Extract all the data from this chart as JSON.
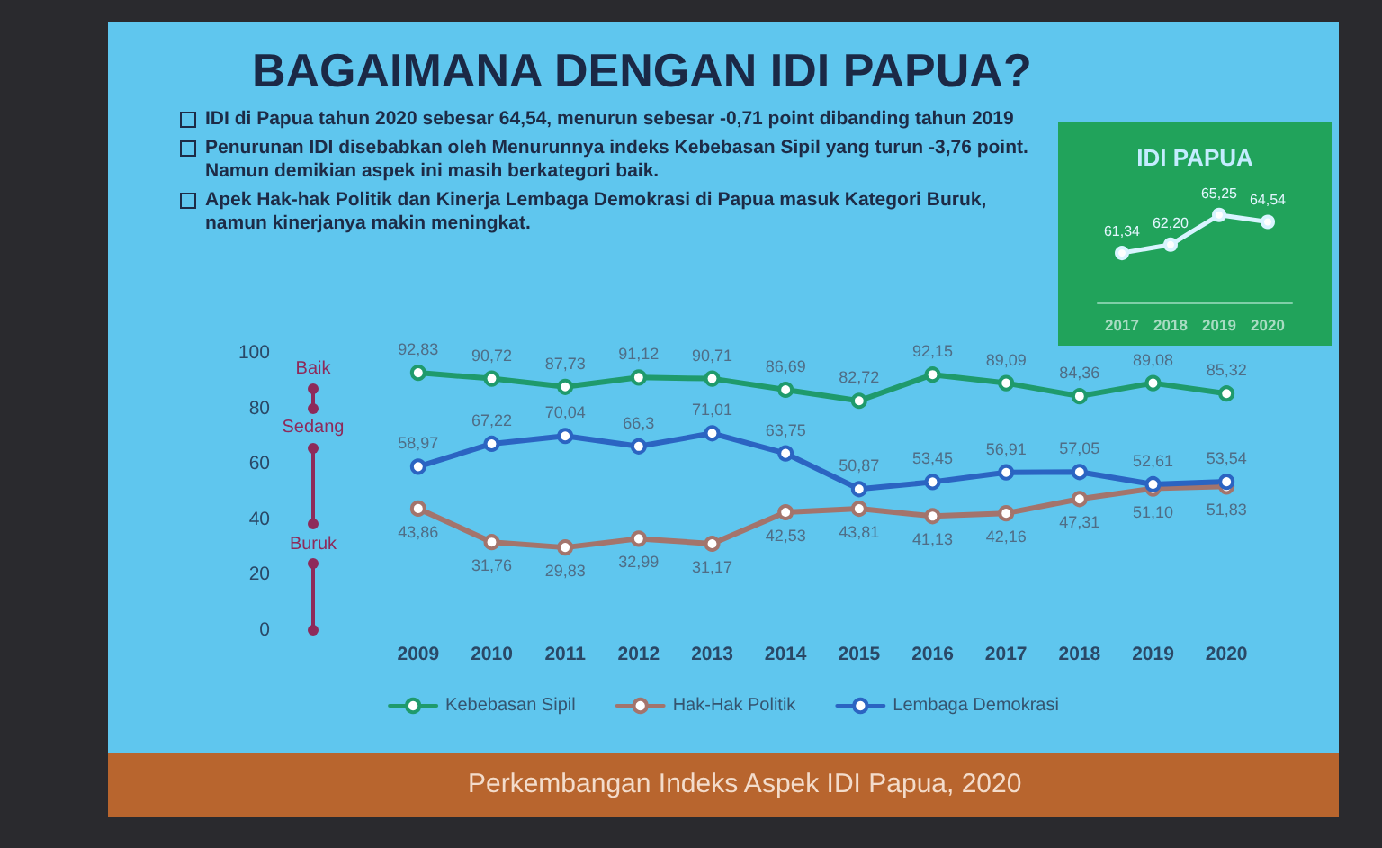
{
  "chart_data": [
    {
      "type": "other",
      "title": "BAGAIMANA DENGAN IDI PAPUA?",
      "annotations": [
        "IDI di Papua tahun 2020 sebesar 64,54, menurun sebesar -0,71 point dibanding tahun 2019",
        "Penurunan IDI disebabkan oleh Menurunnya indeks Kebebasan Sipil yang turun -3,76 point. Namun demikian aspek ini masih berkategori baik.",
        "Apek Hak-hak Politik dan Kinerja Lembaga Demokrasi di Papua masuk Kategori Buruk, namun kinerjanya makin meningkat."
      ]
    },
    {
      "type": "line",
      "title": "IDI PAPUA",
      "categories": [
        "2017",
        "2018",
        "2019",
        "2020"
      ],
      "values": [
        61.34,
        62.2,
        65.25,
        64.54
      ],
      "value_labels": [
        "61,34",
        "62,20",
        "65,25",
        "64,54"
      ],
      "color": "#d9f4ff",
      "marker": "circle",
      "tick_labels": "x"
    },
    {
      "type": "line",
      "title": "Perkembangan Indeks Aspek IDI Papua, 2020",
      "categories": [
        "2009",
        "2010",
        "2011",
        "2012",
        "2013",
        "2014",
        "2015",
        "2016",
        "2017",
        "2018",
        "2019",
        "2020"
      ],
      "series": [
        {
          "name": "Kebebasan Sipil",
          "color": "#1f9a6c",
          "values": [
            92.83,
            90.72,
            87.73,
            91.12,
            90.71,
            86.69,
            82.72,
            92.15,
            89.09,
            84.36,
            89.08,
            85.32
          ],
          "value_labels": [
            "92,83",
            "90,72",
            "87,73",
            "91,12",
            "90,71",
            "86,69",
            "82,72",
            "92,15",
            "89,09",
            "84,36",
            "89,08",
            "85,32"
          ]
        },
        {
          "name": "Hak-Hak Politik",
          "color": "#a3746c",
          "values": [
            43.86,
            31.76,
            29.83,
            32.99,
            31.17,
            42.53,
            43.81,
            41.13,
            42.16,
            47.31,
            51.1,
            51.83
          ],
          "value_labels": [
            "43,86",
            "31,76",
            "29,83",
            "32,99",
            "31,17",
            "42,53",
            "43,81",
            "41,13",
            "42,16",
            "47,31",
            "51,10",
            "51,83"
          ]
        },
        {
          "name": "Lembaga Demokrasi",
          "color": "#2b64c2",
          "values": [
            58.97,
            67.22,
            70.04,
            66.3,
            71.01,
            63.75,
            50.87,
            53.45,
            56.91,
            57.05,
            52.61,
            53.54
          ],
          "value_labels": [
            "58,97",
            "67,22",
            "70,04",
            "66,3",
            "71,01",
            "63,75",
            "50,87",
            "53,45",
            "56,91",
            "57,05",
            "52,61",
            "53,54"
          ]
        }
      ],
      "ylim": [
        0,
        100
      ],
      "yticks": [
        0,
        20,
        40,
        60,
        80,
        100
      ],
      "annotations": [
        "Baik",
        "Sedang",
        "Buruk"
      ],
      "marker": "circle",
      "legend": "bottom"
    }
  ]
}
